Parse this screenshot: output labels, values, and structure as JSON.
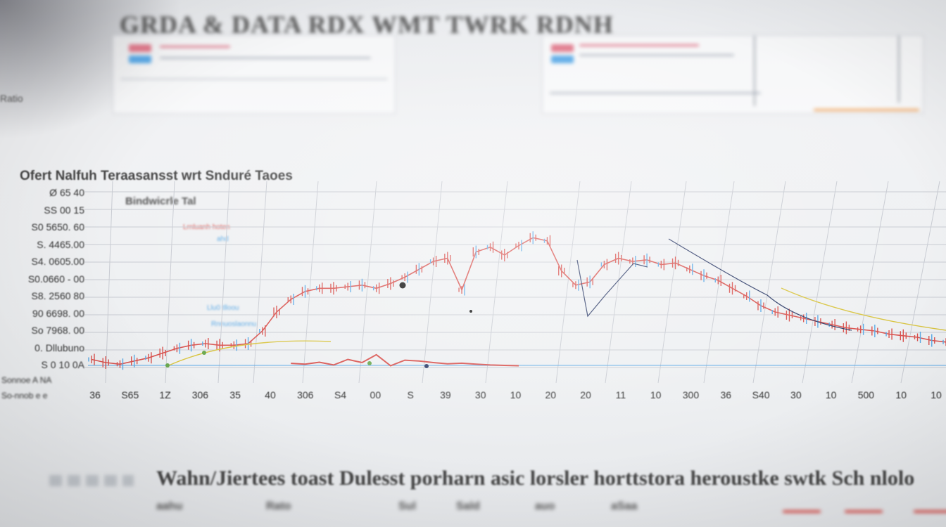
{
  "header": {
    "title": "GRDA & DATA RDX WMT TWRK RDNH",
    "left_label": "Ratio"
  },
  "panels": {
    "left_panel_colors": [
      "#e07a8c",
      "#5aa9e6"
    ],
    "right_panel_colors": [
      "#e07a8c",
      "#5aa9e6"
    ],
    "right_panel_accent": "#f0a25a"
  },
  "chart": {
    "title": "Ofert Nalfuh Teraasansst wrt Snduré Taoes",
    "subtitle": "Bindwicrle Tal",
    "annotations": [
      {
        "text": "Lrnluanh hoten",
        "color": "#d9534f"
      },
      {
        "text": "ahd",
        "color": "#5aa9e6"
      },
      {
        "text": "Llu0 tlloou",
        "color": "#5aa9e6"
      },
      {
        "text": "Rnnuoslaonnu",
        "color": "#5aa9e6"
      }
    ],
    "y_tick_labels": [
      "Ø 65 40",
      "SS 00 15",
      "S0 5650. 60",
      "S. 4465.00",
      "S4. 0605.00",
      "S0.0660 - 00",
      "S8. 2560 80",
      "90 6698. 00",
      "So 7968. 00",
      "0. Dllubuno",
      "S 0 10 0A",
      "Sonnoe A NA",
      "So-nnob e e"
    ],
    "x_tick_labels": [
      "36",
      "S65",
      "1Z",
      "306",
      "35",
      "40",
      "306",
      "S4",
      "00",
      "S",
      "39",
      "30",
      "10",
      "20",
      "20",
      "11",
      "10",
      "300",
      "36",
      "S40",
      "30",
      "10",
      "500",
      "10",
      "10"
    ],
    "colors": {
      "main_line": "#d9534f",
      "trend_yellow": "#d9c542",
      "trend_navy": "#2b3a67",
      "trend_blue": "#5aa9e6",
      "grid": "#c9ccd3"
    }
  },
  "chart_data": {
    "type": "line",
    "title": "Ofert Nalfuh Teraasansst wrt Snduré Taoes",
    "subtitle": "Bindwicrle Tal",
    "xlabel": "",
    "ylabel": "",
    "grid": true,
    "x": [
      0,
      1,
      2,
      3,
      4,
      5,
      6,
      7,
      8,
      9,
      10,
      11,
      12,
      13,
      14,
      15,
      16,
      17,
      18,
      19,
      20,
      21,
      22,
      23,
      24,
      25,
      26,
      27,
      28,
      29,
      30,
      31,
      32,
      33,
      34,
      35,
      36,
      37,
      38,
      39,
      40,
      41,
      42,
      43,
      44,
      45,
      46,
      47,
      48,
      49,
      50,
      51,
      52,
      53,
      54,
      55,
      56,
      57,
      58,
      59,
      60
    ],
    "series": [
      {
        "values": [
          0.6,
          0.4,
          0.3,
          0.5,
          0.7,
          1.0,
          1.3,
          1.5,
          1.6,
          1.5,
          1.5,
          1.6,
          2.4,
          3.6,
          4.4,
          4.9,
          5.1,
          5.1,
          5.2,
          5.3,
          5.1,
          5.4,
          5.8,
          6.3,
          6.8,
          7.0,
          5.0,
          7.4,
          7.7,
          7.2,
          7.8,
          8.3,
          8.1,
          6.2,
          5.3,
          5.5,
          6.6,
          7.0,
          6.8,
          6.9,
          6.6,
          6.7,
          6.3,
          5.9,
          5.6,
          5.1,
          4.6,
          4.0,
          3.6,
          3.4,
          3.2,
          3.0,
          2.8,
          2.6,
          2.5,
          2.4,
          2.2,
          2.1,
          2.0,
          1.8,
          1.7
        ]
      },
      {
        "values": [
          null,
          null,
          null,
          null,
          null,
          null,
          null,
          null,
          null,
          null,
          null,
          null,
          null,
          null,
          null,
          null,
          null,
          null,
          null,
          null,
          null,
          null,
          null,
          null,
          0.35,
          0.3,
          0.42,
          0.25,
          0.6,
          0.4,
          0.9,
          0.2,
          0.55,
          0.5,
          0.4,
          0.32,
          0.36,
          0.3,
          0.25,
          0.22,
          0.2,
          null,
          null,
          null,
          null,
          null,
          null,
          null,
          null,
          null,
          null,
          null,
          null,
          null,
          null,
          null,
          null,
          null,
          null,
          null,
          null
        ]
      }
    ]
  },
  "bottom": {
    "caption": "Wahn/Jiertees toast Dulesst porharn asic lorsler horttstora heroustke swtk Sch nlolo",
    "legend": [
      {
        "label": "aahu",
        "color": ""
      },
      {
        "label": "Rato",
        "color": ""
      },
      {
        "label": "Sul",
        "color": ""
      },
      {
        "label": "Sald",
        "color": ""
      },
      {
        "label": "auo",
        "color": ""
      },
      {
        "label": "aSaa",
        "color": ""
      },
      {
        "label": "",
        "color": "#d9534f"
      },
      {
        "label": "",
        "color": "#d9534f"
      },
      {
        "label": "",
        "color": "#d9534f"
      }
    ]
  }
}
